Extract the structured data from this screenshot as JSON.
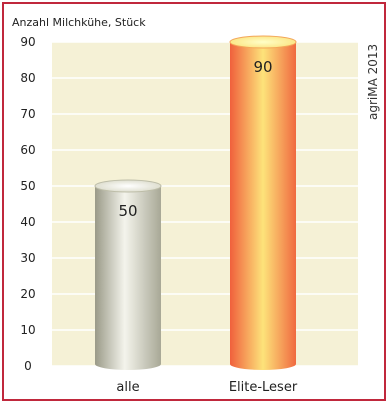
{
  "chart_data": {
    "type": "bar",
    "ylabel": "Anzahl Milchkühe, Stück",
    "categories": [
      "alle",
      "Elite-Leser"
    ],
    "values": [
      50,
      90
    ],
    "ylim": [
      0,
      90
    ],
    "yticks": [
      0,
      10,
      20,
      30,
      40,
      50,
      60,
      70,
      80,
      90
    ],
    "grid": true,
    "source": "agriMA 2013",
    "colors": {
      "frame": "#c0283c",
      "plot_background": "#f5f1d6",
      "bar_alle": "#c8c8b4",
      "bar_elite": "#f07040"
    }
  }
}
